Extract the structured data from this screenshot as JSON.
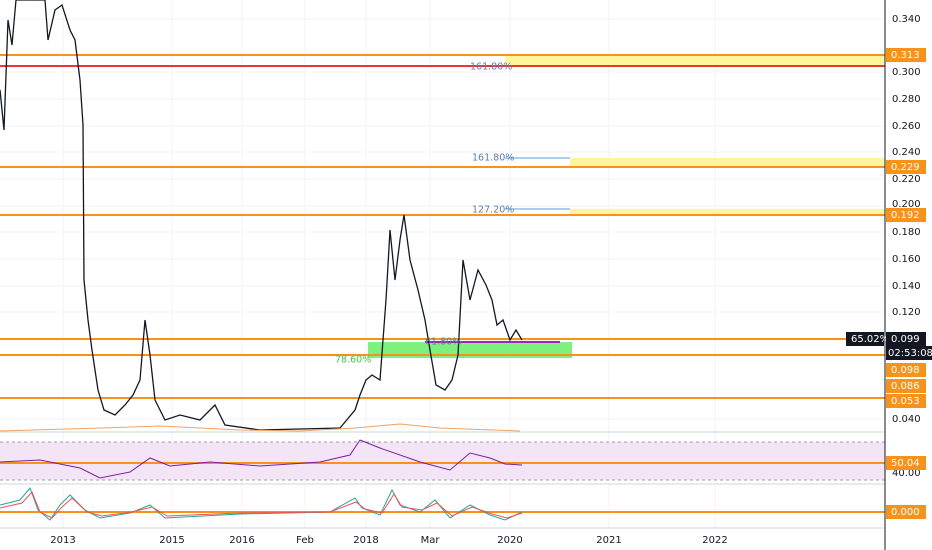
{
  "price_axis": {
    "ticks": [
      "0.340",
      "0.300",
      "0.280",
      "0.260",
      "0.240",
      "0.220",
      "0.200",
      "0.180",
      "0.160",
      "0.140",
      "0.120",
      "0.040"
    ]
  },
  "levels": [
    "0.313",
    "0.229",
    "0.192",
    "0.099",
    "0.098",
    "0.086",
    "0.053"
  ],
  "change": "65.02%",
  "countdown": "02:53:08",
  "fib_labels": [
    "161.80%",
    "161.80%",
    "127.20%",
    "61.80%",
    "78.60%"
  ],
  "rsi": {
    "value": "50.04",
    "tick": "40.00"
  },
  "oscillator": {
    "value": "0.000"
  },
  "time_axis": {
    "labels": [
      "2013",
      "2015",
      "2016",
      "Feb",
      "2018",
      "Mar",
      "2020",
      "2021",
      "2022"
    ]
  }
}
